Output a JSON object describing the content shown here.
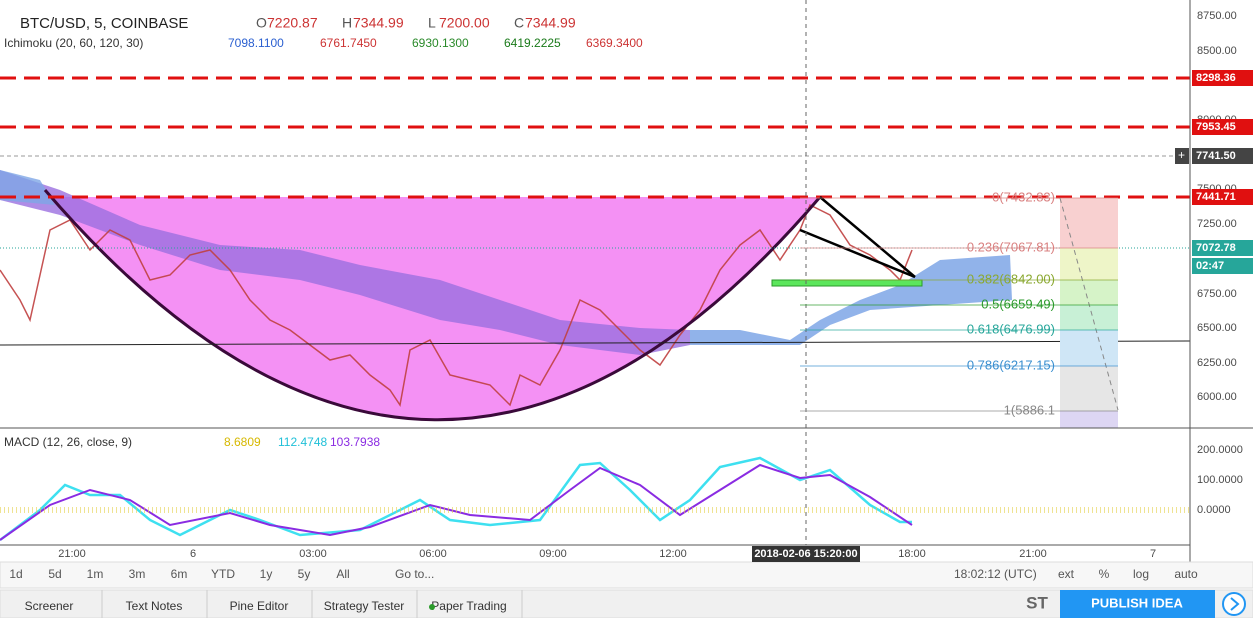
{
  "header": {
    "symbol": "BTC/USD, 5, COINBASE",
    "ohlc": [
      {
        "key": "O",
        "value": "7220.87"
      },
      {
        "key": "H",
        "value": "7344.99"
      },
      {
        "key": "L",
        "value": "7200.00"
      },
      {
        "key": "C",
        "value": "7344.99"
      }
    ]
  },
  "indicator": {
    "name": "Ichimoku (20, 60, 120, 30)",
    "values": [
      "7098.1100",
      "6761.7450",
      "6930.1300",
      "6419.2225",
      "6369.3400"
    ]
  },
  "price_axis": {
    "labels": [
      "8750.00",
      "8500.00",
      "8000.00",
      "7500.00",
      "7250.00",
      "6750.00",
      "6500.00",
      "6250.00",
      "6000.00"
    ]
  },
  "price_tags": [
    "8298.36",
    "7953.45",
    "7741.50",
    "7441.71",
    "7072.78",
    "02:47"
  ],
  "fib_levels": [
    "0(7432.83)",
    "0.236(7067.81)",
    "0.382(6842.00)",
    "0.5(6659.49)",
    "0.618(6476.99)",
    "0.786(6217.15)",
    "1(5886.1"
  ],
  "macd": {
    "name": "MACD (12, 26, close, 9)",
    "values": [
      "8.6809",
      "112.4748",
      "103.7938"
    ],
    "axis": [
      "200.0000",
      "100.0000",
      "0.0000"
    ]
  },
  "time_axis": {
    "labels": [
      "21:00",
      "6",
      "03:00",
      "06:00",
      "09:00",
      "12:00",
      "18:00",
      "21:00",
      "7"
    ],
    "cursor": "2018-02-06 15:20:00"
  },
  "intervals": [
    "1d",
    "5d",
    "1m",
    "3m",
    "6m",
    "YTD",
    "1y",
    "5y",
    "All",
    "Go to..."
  ],
  "status": {
    "time": "18:02:12 (UTC)",
    "options": [
      "ext",
      "%",
      "log",
      "auto"
    ]
  },
  "tabs": [
    "Screener",
    "Text Notes",
    "Pine Editor",
    "Strategy Tester",
    "Paper Trading"
  ],
  "footer": {
    "brand": "ST",
    "publish": "PUBLISH IDEA"
  }
}
